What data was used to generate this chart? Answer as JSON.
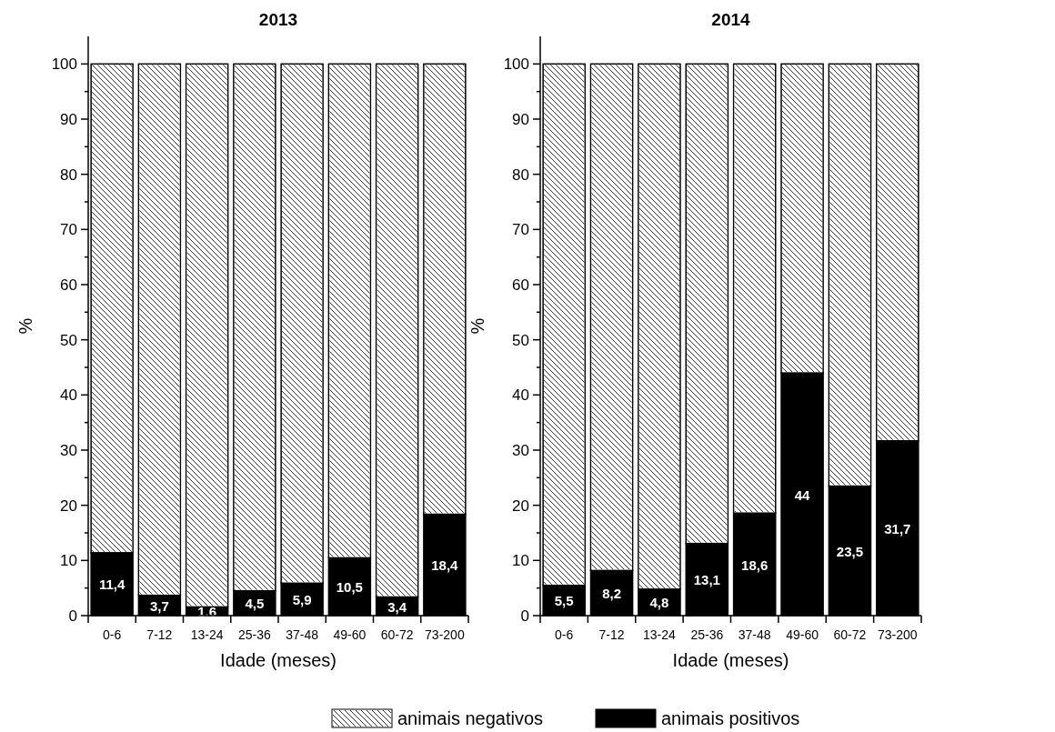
{
  "chart_data": [
    {
      "type": "bar",
      "title": "2013",
      "xlabel": "Idade (meses)",
      "ylabel": "%",
      "categories": [
        "0-6",
        "7-12",
        "13-24",
        "25-36",
        "37-48",
        "49-60",
        "60-72",
        "73-200"
      ],
      "stacked": true,
      "ylim": [
        0,
        105
      ],
      "yticks": [
        0,
        {
          "value": 5,
          "label": null
        },
        10,
        {
          "value": 15,
          "label": null
        },
        20,
        {
          "value": 25,
          "label": null
        },
        30,
        {
          "value": 35,
          "label": null
        },
        40,
        {
          "value": 45,
          "label": null
        },
        50,
        {
          "value": 55,
          "label": null
        },
        60,
        {
          "value": 65,
          "label": null
        },
        70,
        {
          "value": 75,
          "label": null
        },
        80,
        {
          "value": 85,
          "label": null
        },
        90,
        {
          "value": 95,
          "label": null
        },
        100
      ],
      "legend": "bottom",
      "series": [
        {
          "name": "animais positivos",
          "color": "#000000",
          "values": [
            11.4,
            3.7,
            1.6,
            4.5,
            5.9,
            10.5,
            3.4,
            18.4
          ],
          "value_labels": [
            "11,4",
            "3,7",
            "1,6",
            "4,5",
            "5,9",
            "10,5",
            "3,4",
            "18,4"
          ]
        },
        {
          "name": "animais negativos",
          "color": "#ffffff",
          "values": [
            88.6,
            96.3,
            98.4,
            95.5,
            94.1,
            89.5,
            96.6,
            81.6
          ]
        }
      ]
    },
    {
      "type": "bar",
      "title": "2014",
      "xlabel": "Idade (meses)",
      "ylabel": "%",
      "categories": [
        "0-6",
        "7-12",
        "13-24",
        "25-36",
        "37-48",
        "49-60",
        "60-72",
        "73-200"
      ],
      "stacked": true,
      "legend": "bottom",
      "ylim": [
        0,
        105
      ],
      "yticks": [
        0,
        {
          "value": 5,
          "label": null
        },
        10,
        {
          "value": 15,
          "label": null
        },
        20,
        {
          "value": 25,
          "label": null
        },
        30,
        {
          "value": 35,
          "label": null
        },
        40,
        {
          "value": 45,
          "label": null
        },
        50,
        {
          "value": 55,
          "label": null
        },
        60,
        {
          "value": 65,
          "label": null
        },
        70,
        {
          "value": 75,
          "label": null
        },
        80,
        {
          "value": 85,
          "label": null
        },
        90,
        {
          "value": 95,
          "label": null
        },
        100
      ],
      "series": [
        {
          "name": "animais positivos",
          "color": "#000000",
          "values": [
            5.5,
            8.2,
            4.8,
            13.1,
            18.6,
            44,
            23.5,
            31.7
          ],
          "value_labels": [
            "5,5",
            "8,2",
            "4,8",
            "13,1",
            "18,6",
            "44",
            "23,5",
            "31,7"
          ]
        },
        {
          "name": "animais negativos",
          "color": "#ffffff",
          "values": [
            94.5,
            91.8,
            95.2,
            86.9,
            81.4,
            56,
            76.5,
            68.3
          ]
        }
      ]
    }
  ]
}
